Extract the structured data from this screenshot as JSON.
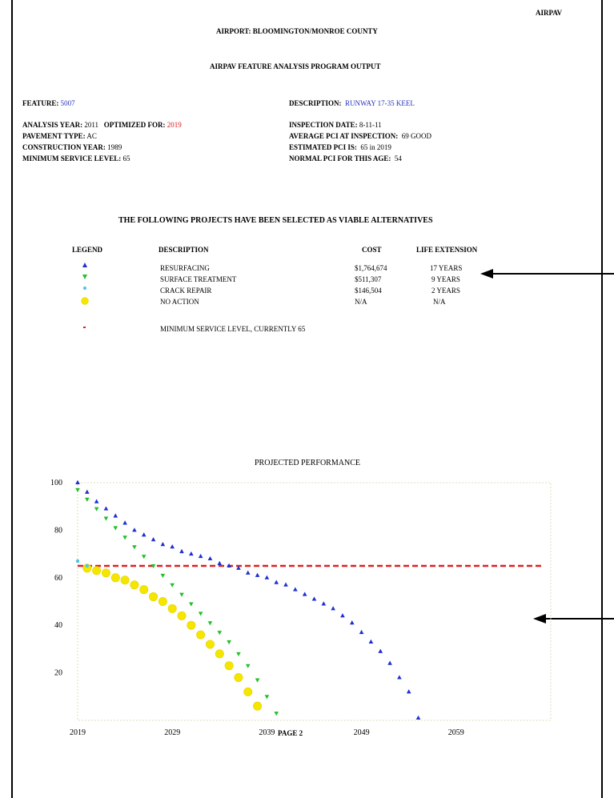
{
  "header": {
    "corner_label": "AIRPAV",
    "airport_label": "AIRPORT:",
    "airport_value": "BLOOMINGTON/MONROE COUNTY",
    "program_title": "AIRPAV FEATURE ANALYSIS PROGRAM OUTPUT"
  },
  "feature": {
    "feature_label": "FEATURE:",
    "feature_value": "5007",
    "description_label": "DESCRIPTION:",
    "description_value": "RUNWAY 17-35 KEEL",
    "analysis_year_label": "ANALYSIS YEAR:",
    "analysis_year_value": "2011",
    "optimized_label": "OPTIMIZED FOR:",
    "optimized_value": "2019",
    "pavement_type_label": "PAVEMENT TYPE:",
    "pavement_type_value": "AC",
    "construction_year_label": "CONSTRUCTION YEAR:",
    "construction_year_value": "1989",
    "min_service_label": "MINIMUM SERVICE LEVEL:",
    "min_service_value": "65",
    "inspection_date_label": "INSPECTION DATE:",
    "inspection_date_value": "8-11-11",
    "avg_pci_label": "AVERAGE PCI AT INSPECTION:",
    "avg_pci_value": "69 GOOD",
    "est_pci_label": "ESTIMATED PCI IS:",
    "est_pci_value": "65 in  2019",
    "normal_pci_label": "NORMAL PCI FOR THIS AGE:",
    "normal_pci_value": "54"
  },
  "projects": {
    "section_title": "THE FOLLOWING PROJECTS HAVE BEEN SELECTED AS VIABLE ALTERNATIVES",
    "col_legend": "LEGEND",
    "col_description": "DESCRIPTION",
    "col_cost": "COST",
    "col_life": "LIFE EXTENSION",
    "rows": [
      {
        "description": "RESURFACING",
        "cost": "$1,764,674",
        "life": "17 YEARS",
        "marker": "triangle-up",
        "color": "#1f2fd0"
      },
      {
        "description": "SURFACE TREATMENT",
        "cost": "$511,307",
        "life": "9 YEARS",
        "marker": "triangle-down",
        "color": "#22c02a"
      },
      {
        "description": "CRACK REPAIR",
        "cost": "$146,504",
        "life": "2 YEARS",
        "marker": "small-dot",
        "color": "#4fc3e8"
      },
      {
        "description": "NO ACTION",
        "cost": "N/A",
        "life": "N/A",
        "marker": "circle",
        "color": "#f5e600"
      }
    ],
    "min_service_note": "MINIMUM SERVICE LEVEL, CURRENTLY 65",
    "min_service_color": "#e02020"
  },
  "footer": {
    "page_label": "PAGE 2"
  },
  "chart_data": {
    "type": "scatter",
    "title": "PROJECTED PERFORMANCE",
    "xlabel": "",
    "ylabel": "",
    "xlim": [
      2019,
      2069
    ],
    "ylim": [
      0,
      100
    ],
    "x_ticks": [
      "2019",
      "2029",
      "2039",
      "2049",
      "2059"
    ],
    "y_ticks": [
      "100",
      "80",
      "60",
      "40",
      "20"
    ],
    "grid": false,
    "reference_line": {
      "name": "MINIMUM SERVICE LEVEL",
      "value": 65,
      "color": "#e02020"
    },
    "series": [
      {
        "name": "RESURFACING",
        "marker": "triangle-up",
        "color": "#1f2fd0",
        "x": [
          2019,
          2020,
          2021,
          2022,
          2023,
          2024,
          2025,
          2026,
          2027,
          2028,
          2029,
          2030,
          2031,
          2032,
          2033,
          2034,
          2035,
          2036,
          2037,
          2038,
          2039,
          2040,
          2041,
          2042,
          2043,
          2044,
          2045,
          2046,
          2047,
          2048,
          2049,
          2050,
          2051,
          2052,
          2053,
          2054,
          2055
        ],
        "y": [
          100,
          96,
          92,
          89,
          86,
          83,
          80,
          78,
          76,
          74,
          73,
          71,
          70,
          69,
          68,
          66,
          65,
          64,
          62,
          61,
          60,
          58,
          57,
          55,
          53,
          51,
          49,
          47,
          44,
          41,
          37,
          33,
          29,
          24,
          18,
          12,
          1
        ]
      },
      {
        "name": "SURFACE TREATMENT",
        "marker": "triangle-down",
        "color": "#22c02a",
        "x": [
          2019,
          2020,
          2021,
          2022,
          2023,
          2024,
          2025,
          2026,
          2027,
          2028,
          2029,
          2030,
          2031,
          2032,
          2033,
          2034,
          2035,
          2036,
          2037,
          2038,
          2039,
          2040
        ],
        "y": [
          97,
          93,
          89,
          85,
          81,
          77,
          73,
          69,
          65,
          61,
          57,
          53,
          49,
          45,
          41,
          37,
          33,
          28,
          23,
          17,
          10,
          3
        ]
      },
      {
        "name": "CRACK REPAIR",
        "marker": "small-dot",
        "color": "#4fc3e8",
        "x": [
          2019,
          2020
        ],
        "y": [
          67,
          65
        ]
      },
      {
        "name": "NO ACTION",
        "marker": "circle",
        "color": "#f5e600",
        "x": [
          2020,
          2021,
          2022,
          2023,
          2024,
          2025,
          2026,
          2027,
          2028,
          2029,
          2030,
          2031,
          2032,
          2033,
          2034,
          2035,
          2036,
          2037,
          2038
        ],
        "y": [
          64,
          63,
          62,
          60,
          59,
          57,
          55,
          52,
          50,
          47,
          44,
          40,
          36,
          32,
          28,
          23,
          18,
          12,
          6
        ]
      }
    ]
  }
}
